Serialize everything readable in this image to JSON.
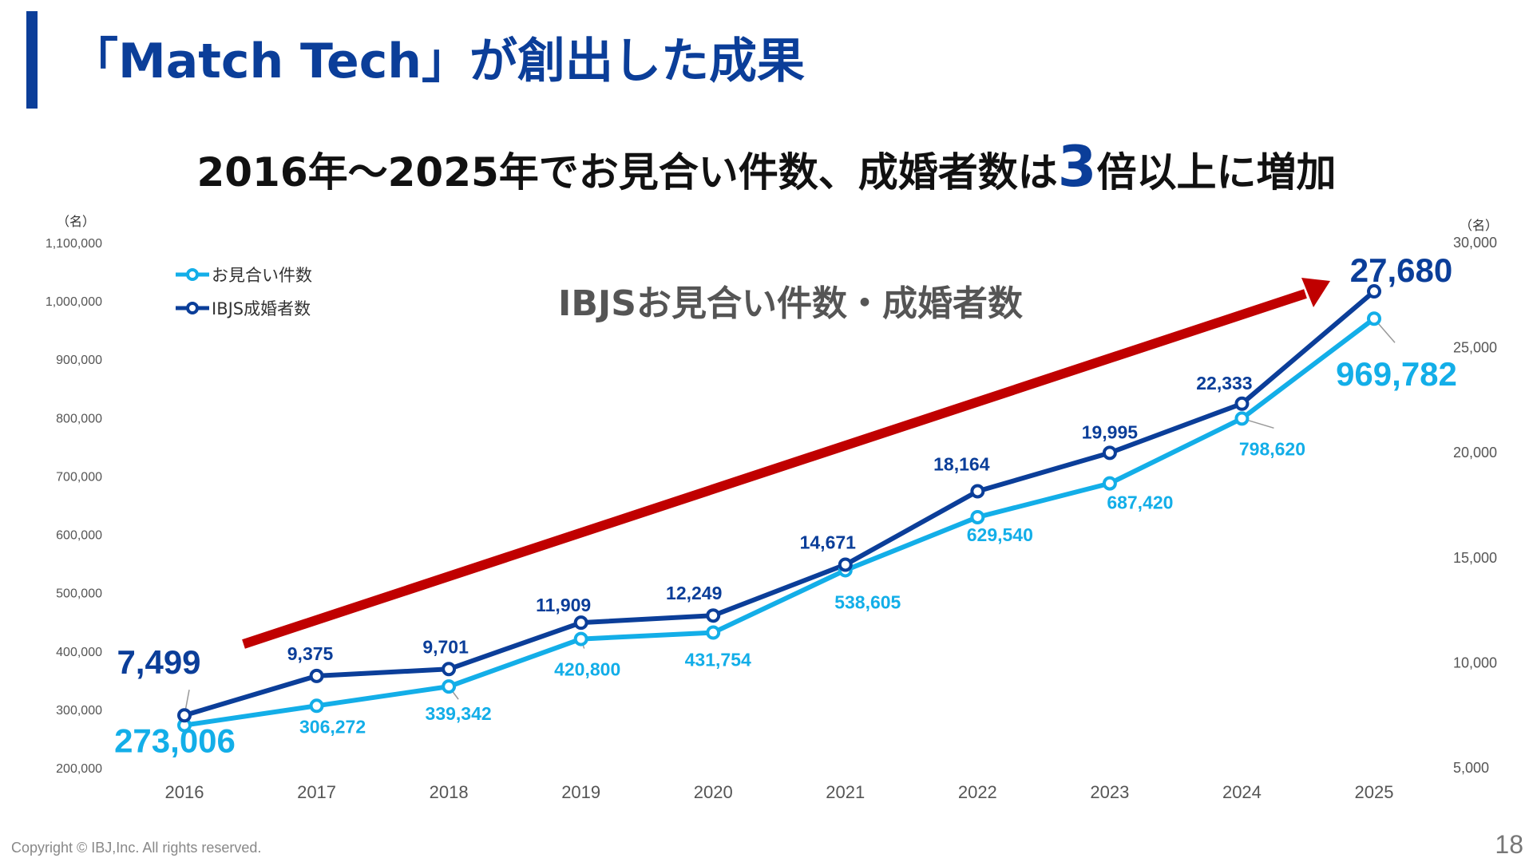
{
  "header": {
    "title": "「Match Tech」が創出した成果",
    "subtitle_before": "2016年〜2025年でお見合い件数、成婚者数は",
    "subtitle_emphasis": "3",
    "subtitle_after": "倍以上に増加"
  },
  "footer": {
    "copyright": "Copyright © IBJ,Inc. All rights reserved.",
    "page_number": "18"
  },
  "colors": {
    "primary_blue": "#0b3e99",
    "light_blue": "#13aee8",
    "arrow_red": "#c00000",
    "axis_text": "#555555"
  },
  "chart_data": {
    "type": "line",
    "title": "IBJSお見合い件数・成婚者数",
    "categories": [
      "2016",
      "2017",
      "2018",
      "2019",
      "2020",
      "2021",
      "2022",
      "2023",
      "2024",
      "2025"
    ],
    "y_left": {
      "unit_label": "（名）",
      "min": 200000,
      "max": 1100000,
      "step": 100000,
      "ticks": [
        "200,000",
        "300,000",
        "400,000",
        "500,000",
        "600,000",
        "700,000",
        "800,000",
        "900,000",
        "1,000,000",
        "1,100,000"
      ]
    },
    "y_right": {
      "unit_label": "（名）",
      "min": 5000,
      "max": 30000,
      "step": 5000,
      "ticks": [
        "5,000",
        "10,000",
        "15,000",
        "20,000",
        "25,000",
        "30,000"
      ]
    },
    "series": [
      {
        "name": "お見合い件数",
        "axis": "left",
        "values": [
          273006,
          306272,
          339342,
          420800,
          431754,
          538605,
          629540,
          687420,
          798620,
          969782
        ],
        "labels": [
          "273,006",
          "306,272",
          "339,342",
          "420,800",
          "431,754",
          "538,605",
          "629,540",
          "687,420",
          "798,620",
          "969,782"
        ]
      },
      {
        "name": "IBJS成婚者数",
        "axis": "right",
        "values": [
          7499,
          9375,
          9701,
          11909,
          12249,
          14671,
          18164,
          19995,
          22333,
          27680
        ],
        "labels": [
          "7,499",
          "9,375",
          "9,701",
          "11,909",
          "12,249",
          "14,671",
          "18,164",
          "19,995",
          "22,333",
          "27,680"
        ]
      }
    ],
    "legend": "top-left",
    "grid": false,
    "annotation": "upward trend arrow"
  }
}
